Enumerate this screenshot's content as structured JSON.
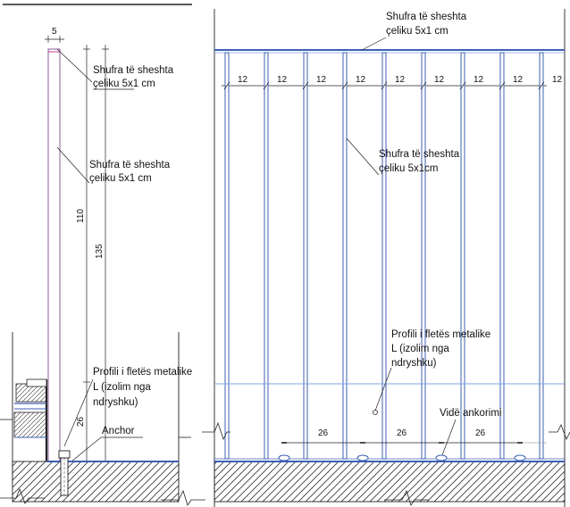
{
  "diagram": {
    "section": {
      "dims": {
        "bar_width": "5",
        "height_upper": "110",
        "height_total": "135",
        "base_height": "26"
      },
      "labels": {
        "flat_bar_top": [
          "Shufra të sheshta",
          "çeliku 5x1 cm"
        ],
        "flat_bar_mid": [
          "Shufra të sheshta",
          "çeliku 5x1 cm"
        ],
        "angle_profile": [
          "Profili i fletës metalike",
          "L (izolim nga",
          "ndryshku)"
        ],
        "anchor": "Anchor"
      }
    },
    "elevation": {
      "spacing_dims": [
        "12",
        "12",
        "12",
        "12",
        "12",
        "12",
        "12",
        "12",
        "12"
      ],
      "bottom_dims": [
        "26",
        "26",
        "26"
      ],
      "labels": {
        "top_bar": [
          "Shufra të sheshta",
          "çeliku 5x1 cm"
        ],
        "vertical_bars": [
          "Shufra të sheshta",
          "çeliku 5x1cm"
        ],
        "angle_profile": [
          "Profili i fletës metalike",
          "L (izolim nga",
          "ndryshku)"
        ],
        "anchor_screw": "Vidë ankorimi"
      }
    },
    "colors": {
      "line": "#222222",
      "steel": "#3c5fb3",
      "steel_light": "#7fa3e6",
      "hatch": "#333333"
    }
  }
}
